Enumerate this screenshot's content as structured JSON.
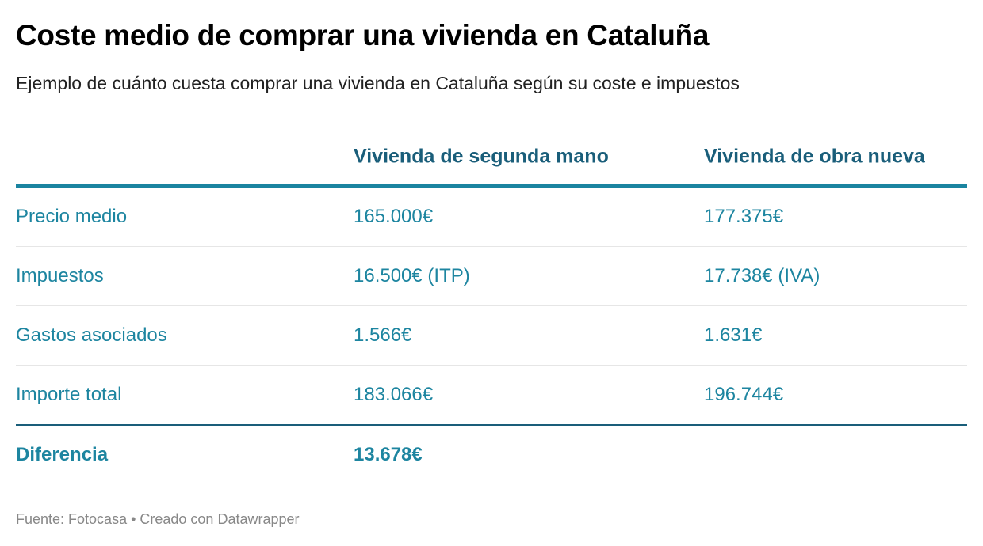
{
  "title": "Coste medio de comprar una vivienda en Cataluña",
  "subtitle": "Ejemplo de cuánto cuesta comprar una vivienda en Cataluña según su coste e impuestos",
  "table": {
    "headers": [
      "",
      "Vivienda de segunda mano",
      "Vivienda de obra nueva"
    ],
    "rows": [
      [
        "Precio medio",
        "165.000€",
        "177.375€"
      ],
      [
        "Impuestos",
        "16.500€ (ITP)",
        "17.738€ (IVA)"
      ],
      [
        "Gastos asociados",
        "1.566€",
        "1.631€"
      ],
      [
        "Importe total",
        "183.066€",
        "196.744€"
      ]
    ],
    "summary": [
      "Diferencia",
      "13.678€",
      ""
    ]
  },
  "footer": "Fuente: Fotocasa • Creado con Datawrapper",
  "colors": {
    "header": "#1a5e7a",
    "body": "#1d85a0"
  }
}
